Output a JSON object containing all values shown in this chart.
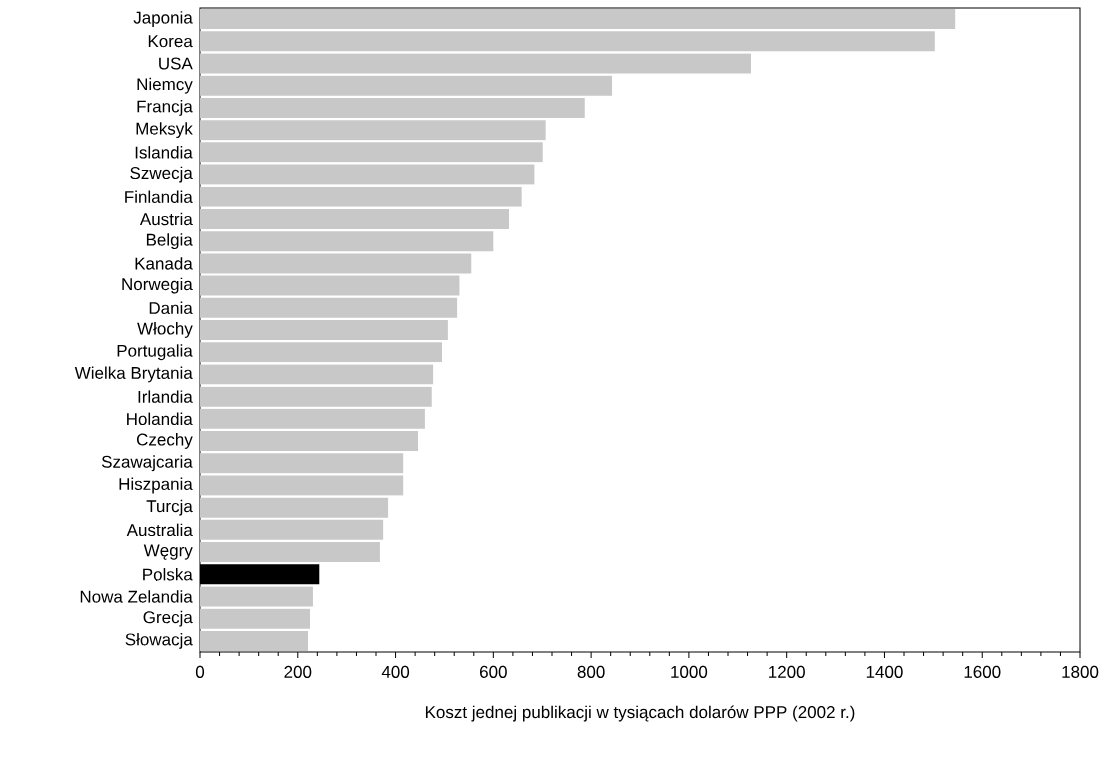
{
  "chart_data": {
    "type": "bar",
    "orientation": "horizontal",
    "xlabel": "Koszt jednej publikacji w tysiącach dolarów PPP (2002 r.)",
    "categories": [
      "Japonia",
      "Korea",
      "USA",
      "Niemcy",
      "Francja",
      "Meksyk",
      "Islandia",
      "Szwecja",
      "Finlandia",
      "Austria",
      "Belgia",
      "Kanada",
      "Norwegia",
      "Dania",
      "Włochy",
      "Portugalia",
      "Wielka Brytania",
      "Irlandia",
      "Holandia",
      "Czechy",
      "Szawajcaria",
      "Hiszpania",
      "Turcja",
      "Australia",
      "Węgry",
      "Polska",
      "Nowa Zelandia",
      "Grecja",
      "Słowacja"
    ],
    "values": [
      1545,
      1503,
      1127,
      843,
      787,
      707,
      701,
      684,
      658,
      632,
      600,
      555,
      531,
      526,
      507,
      495,
      477,
      474,
      460,
      446,
      416,
      416,
      385,
      375,
      368,
      244,
      231,
      225,
      221
    ],
    "colors": [
      "#c8c8c8",
      "#c8c8c8",
      "#c8c8c8",
      "#c8c8c8",
      "#c8c8c8",
      "#c8c8c8",
      "#c8c8c8",
      "#c8c8c8",
      "#c8c8c8",
      "#c8c8c8",
      "#c8c8c8",
      "#c8c8c8",
      "#c8c8c8",
      "#c8c8c8",
      "#c8c8c8",
      "#c8c8c8",
      "#c8c8c8",
      "#c8c8c8",
      "#c8c8c8",
      "#c8c8c8",
      "#c8c8c8",
      "#c8c8c8",
      "#c8c8c8",
      "#c8c8c8",
      "#c8c8c8",
      "#000000",
      "#c8c8c8",
      "#c8c8c8",
      "#c8c8c8"
    ],
    "xlim": [
      0,
      1800
    ],
    "xticks": [
      0,
      200,
      400,
      600,
      800,
      1000,
      1200,
      1400,
      1600,
      1800
    ]
  }
}
